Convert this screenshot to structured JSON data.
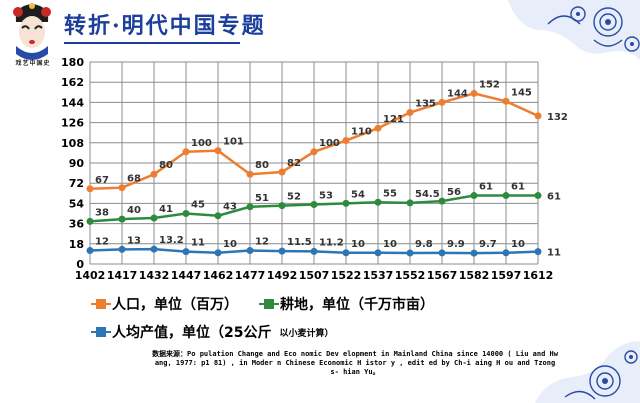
{
  "header": {
    "title": "转折·明代中国专题",
    "logo_caption": "戏艺中国史"
  },
  "legend": {
    "population": "人口，单位（百万）",
    "farmland": "耕地，单位（千万市亩）",
    "per_capita": "人均产值，单位（25公斤",
    "per_capita_note": "以小麦计算）"
  },
  "source": {
    "text": "数据来源：Po pulation Change and Eco nomic Dev elopment in Mainland China since 14000 ( Liu and Hw ang, 1977: p1 81) , in Moder n Chinese Economic H istor y , edit ed by Ch-i aing H ou and Tzong s- hian Yu。"
  },
  "colors": {
    "population": "#ed7d31",
    "farmland": "#2e8b3e",
    "per_capita": "#2e75b6",
    "title": "#1c3f9c",
    "grid": "#8c8c8c"
  },
  "chart_data": {
    "type": "line",
    "categories": [
      "1402",
      "1417",
      "1432",
      "1447",
      "1462",
      "1477",
      "1492",
      "1507",
      "1522",
      "1537",
      "1552",
      "1567",
      "1582",
      "1597",
      "1612"
    ],
    "yticks": [
      0,
      18,
      36,
      54,
      72,
      90,
      108,
      126,
      144,
      162,
      180
    ],
    "ylim": [
      0,
      180
    ],
    "grid": true,
    "legend_position": "bottom",
    "series": [
      {
        "key": "population",
        "name": "人口，单位（百万）",
        "values": [
          67,
          68,
          80,
          100,
          101,
          80,
          82,
          100,
          110,
          121,
          135,
          144,
          152,
          145,
          132
        ],
        "labels": [
          "67",
          "68",
          "80",
          "100",
          "101",
          "80",
          "82",
          "100",
          "110",
          "121",
          "135",
          "144",
          "152",
          "145",
          "132"
        ]
      },
      {
        "key": "farmland",
        "name": "耕地，单位（千万市亩）",
        "values": [
          38,
          40,
          41,
          45,
          43,
          51,
          52,
          53,
          54,
          55,
          54.5,
          56,
          61,
          61,
          61
        ],
        "labels": [
          "38",
          "40",
          "41",
          "45",
          "43",
          "51",
          "52",
          "53",
          "54",
          "55",
          "54.5",
          "56",
          "61",
          "61",
          "61"
        ]
      },
      {
        "key": "per_capita",
        "name": "人均产值，单位（25公斤以小麦计算）",
        "values": [
          12,
          13,
          13.2,
          11,
          10,
          12,
          11.5,
          11.2,
          10,
          10,
          9.8,
          9.9,
          9.7,
          10,
          11
        ],
        "labels": [
          "12",
          "13",
          "13.2",
          "11",
          "10",
          "12",
          "11.5",
          "11.2",
          "10",
          "10",
          "9.8",
          "9.9",
          "9.7",
          "10",
          "11"
        ]
      }
    ]
  }
}
